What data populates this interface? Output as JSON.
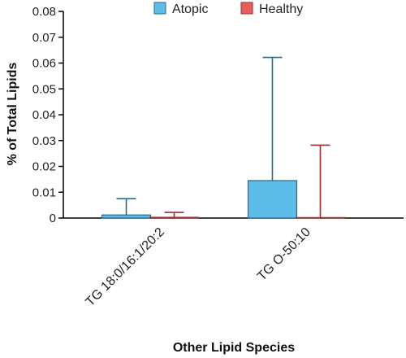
{
  "chart_data": {
    "type": "bar",
    "xlabel": "Other Lipid Species",
    "ylabel": "% of Total Lipids",
    "categories": [
      "TG 18:0/16:1/20:2",
      "TG O-50:10"
    ],
    "ylim": [
      0,
      0.08
    ],
    "yticks": [
      "0",
      "0.01",
      "0.02",
      "0.03",
      "0.04",
      "0.05",
      "0.06",
      "0.07",
      "0.08"
    ],
    "legend_position": "top",
    "error_bars": "upper",
    "series": [
      {
        "name": "Atopic",
        "color": "#5bbde8",
        "edge_color": "#2d6a8a",
        "values": [
          0.0012,
          0.0145
        ],
        "error_upper": [
          0.0075,
          0.0622
        ]
      },
      {
        "name": "Healthy",
        "color": "#e85c5c",
        "edge_color": "#9b3030",
        "values": [
          0.0003,
          0.0002
        ],
        "error_upper": [
          0.0022,
          0.0282
        ]
      }
    ]
  }
}
